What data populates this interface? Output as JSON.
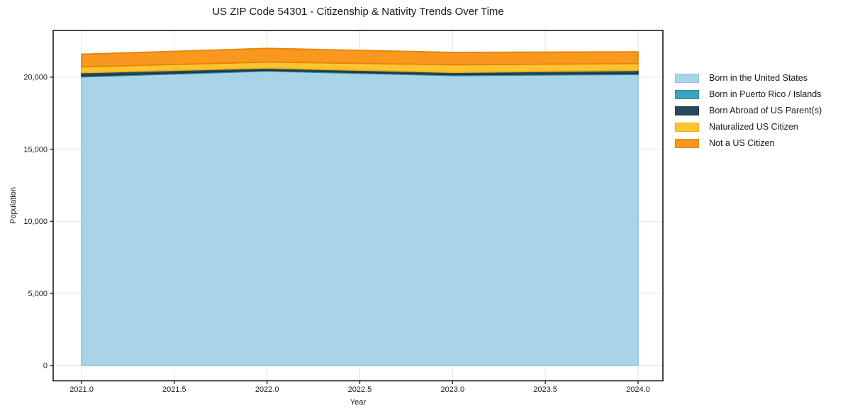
{
  "chart_data": {
    "type": "area",
    "stacked": true,
    "title": "US ZIP Code 54301 - Citizenship & Nativity Trends Over Time",
    "xlabel": "Year",
    "ylabel": "Population",
    "x": [
      2021,
      2022,
      2023,
      2024
    ],
    "series": [
      {
        "name": "Born in the United States",
        "color": "#a9d4e8",
        "edge": "#90c4dc",
        "values": [
          20020,
          20420,
          20110,
          20190
        ]
      },
      {
        "name": "Born in Puerto Rico / Islands",
        "color": "#3ba3bd",
        "edge": "#2e8da6",
        "values": [
          60,
          60,
          60,
          70
        ]
      },
      {
        "name": "Born Abroad of US Parent(s)",
        "color": "#26495c",
        "edge": "#1c3848",
        "values": [
          230,
          150,
          160,
          210
        ]
      },
      {
        "name": "Naturalized US Citizen",
        "color": "#fdc431",
        "edge": "#f0ae14",
        "values": [
          400,
          420,
          530,
          470
        ]
      },
      {
        "name": "Not a US Citizen",
        "color": "#f8981f",
        "edge": "#e68405",
        "values": [
          880,
          950,
          860,
          820
        ]
      }
    ],
    "x_ticks": [
      "2021.0",
      "2021.5",
      "2022.0",
      "2022.5",
      "2023.0",
      "2023.5",
      "2024.0"
    ],
    "x_tick_values": [
      2021,
      2021.5,
      2022,
      2022.5,
      2023,
      2023.5,
      2024
    ],
    "y_ticks": [
      "0",
      "5,000",
      "10,000",
      "15,000",
      "20,000"
    ],
    "y_tick_values": [
      0,
      5000,
      10000,
      15000,
      20000
    ],
    "xlim": [
      2020.847,
      2024.134
    ],
    "ylim": [
      -1070,
      23240
    ],
    "grid": true,
    "grid_color": "#e4e4e4",
    "axis_color": "#1a1a1a",
    "legend_position": "right"
  }
}
